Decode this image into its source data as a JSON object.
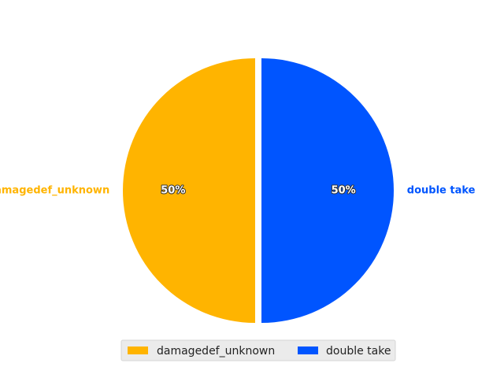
{
  "chart_data": {
    "type": "pie",
    "start_angle": "top, clockwise",
    "exploded": true,
    "slices": [
      {
        "label": "double take",
        "value": 50,
        "pct_label": "50%",
        "color": "#0055ff"
      },
      {
        "label": "damagedef_unknown",
        "value": 50,
        "pct_label": "50%",
        "color": "#ffb400"
      }
    ],
    "legend": {
      "placement": "bottom-center",
      "entries": [
        "damagedef_unknown",
        "double take"
      ]
    },
    "title": "",
    "background": "#ffffff"
  }
}
